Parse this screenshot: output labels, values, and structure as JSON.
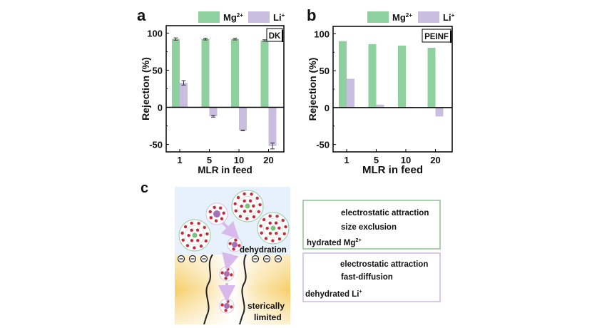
{
  "colors": {
    "mg": "#8fd19e",
    "li": "#c9bde0",
    "blue_bg": "#e6f1fb",
    "yellow": "#f7d37a",
    "green_box": "#8fbf8f",
    "purple_box": "#cdb6e0",
    "arrow": "#d9b8ec"
  },
  "legend": {
    "mg": "Mg",
    "mg_sup": "2+",
    "li": "Li",
    "li_sup": "+"
  },
  "chart_data": [
    {
      "panel": "a",
      "type": "bar",
      "inset_label": "DK",
      "categories": [
        "1",
        "5",
        "10",
        "20"
      ],
      "series": [
        {
          "name": "Mg2+",
          "values": [
            92,
            92,
            92,
            90
          ],
          "errors": [
            1.5,
            1.2,
            1.2,
            1.0
          ]
        },
        {
          "name": "Li+",
          "values": [
            33,
            -12,
            -31,
            -52
          ],
          "errors": [
            3,
            1.2,
            0.4,
            4
          ]
        }
      ],
      "xlabel": "MLR in feed",
      "ylabel": "Rejection (%)",
      "yticks": [
        "100",
        "50",
        "0",
        "-50"
      ],
      "ytick_values": [
        100,
        50,
        0,
        -50
      ],
      "ylim": [
        -60,
        110
      ]
    },
    {
      "panel": "b",
      "type": "bar",
      "inset_label": "PEINF",
      "categories": [
        "1",
        "5",
        "10",
        "20"
      ],
      "series": [
        {
          "name": "Mg2+",
          "values": [
            90,
            86,
            84,
            81
          ]
        },
        {
          "name": "Li+",
          "values": [
            39,
            4,
            1,
            -12
          ]
        }
      ],
      "xlabel": "MLR in feed",
      "ylabel": "Rejection (%)",
      "yticks": [
        "100",
        "50",
        "0",
        "-50"
      ],
      "ytick_values": [
        100,
        50,
        0,
        -50
      ],
      "ylim": [
        -60,
        110
      ]
    }
  ],
  "diagram": {
    "panel": "c",
    "dehydration": "dehydration",
    "sterically": "sterically",
    "limited": "limited",
    "mg_box": {
      "line1": "electrostatic attraction",
      "line2": "size exclusion",
      "label": "hydrated Mg",
      "label_sup": "2+"
    },
    "li_box": {
      "line1": "electrostatic attraction",
      "line2": "fast-diffusion",
      "label": "dehydrated Li",
      "label_sup": "+"
    }
  }
}
